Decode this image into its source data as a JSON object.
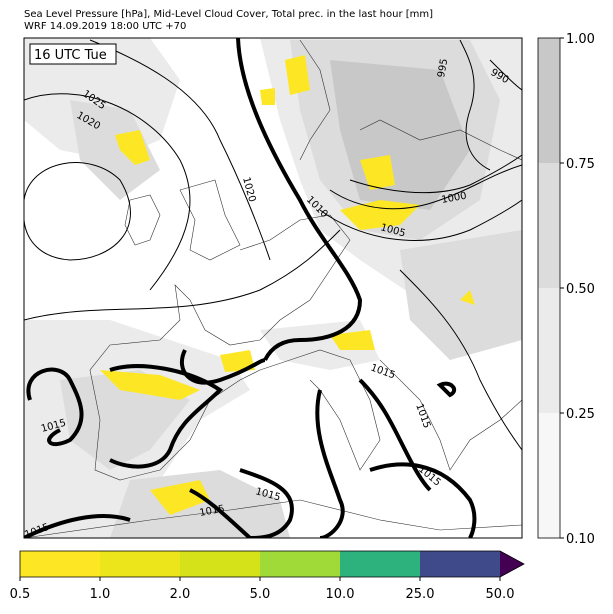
{
  "header": {
    "title_line1": "Sea Level Pressure [hPa], Mid-Level Cloud Cover, Total prec. in the last hour [mm]",
    "title_line2": "WRF 14.09.2019 18:00 UTC +70"
  },
  "map": {
    "time_label": "16 UTC Tue",
    "isobar_labels": [
      "1025",
      "1020",
      "1020",
      "1010",
      "1005",
      "1000",
      "995",
      "990",
      "1015",
      "1015",
      "1015",
      "1015",
      "1015",
      "1015",
      "1015"
    ]
  },
  "cloud_colorbar": {
    "ticks": [
      "1.00",
      "0.75",
      "0.50",
      "0.25",
      "0.10"
    ]
  },
  "precip_colorbar": {
    "ticks": [
      "0.5",
      "1.0",
      "2.0",
      "5.0",
      "10.0",
      "25.0",
      "50.0"
    ]
  }
}
